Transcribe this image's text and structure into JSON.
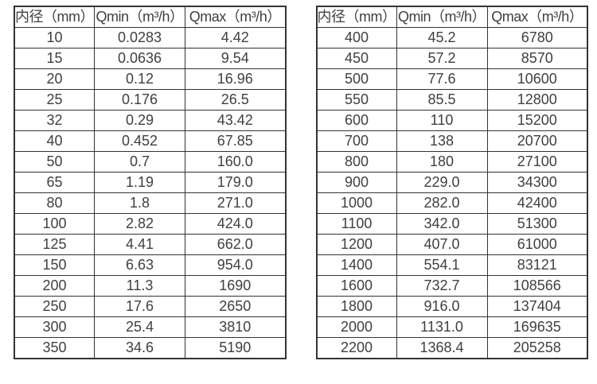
{
  "page": {
    "background_color": "#ffffff",
    "border_color": "#333333",
    "text_color": "#404040"
  },
  "tables": [
    {
      "name": "flow-rate-table-small-diameters",
      "headers": [
        "内径（mm）",
        "Qmin（m³/h）",
        "Qmax（m³/h）"
      ],
      "rows": [
        [
          "10",
          "0.0283",
          "4.42"
        ],
        [
          "15",
          "0.0636",
          "9.54"
        ],
        [
          "20",
          "0.12",
          "16.96"
        ],
        [
          "25",
          "0.176",
          "26.5"
        ],
        [
          "32",
          "0.29",
          "43.42"
        ],
        [
          "40",
          "0.452",
          "67.85"
        ],
        [
          "50",
          "0.7",
          "160.0"
        ],
        [
          "65",
          "1.19",
          "179.0"
        ],
        [
          "80",
          "1.8",
          "271.0"
        ],
        [
          "100",
          "2.82",
          "424.0"
        ],
        [
          "125",
          "4.41",
          "662.0"
        ],
        [
          "150",
          "6.63",
          "954.0"
        ],
        [
          "200",
          "11.3",
          "1690"
        ],
        [
          "250",
          "17.6",
          "2650"
        ],
        [
          "300",
          "25.4",
          "3810"
        ],
        [
          "350",
          "34.6",
          "5190"
        ]
      ]
    },
    {
      "name": "flow-rate-table-large-diameters",
      "headers": [
        "内径（mm）",
        "Qmin（m³/h）",
        "Qmax（m³/h）"
      ],
      "rows": [
        [
          "400",
          "45.2",
          "6780"
        ],
        [
          "450",
          "57.2",
          "8570"
        ],
        [
          "500",
          "77.6",
          "10600"
        ],
        [
          "550",
          "85.5",
          "12800"
        ],
        [
          "600",
          "110",
          "15200"
        ],
        [
          "700",
          "138",
          "20700"
        ],
        [
          "800",
          "180",
          "27100"
        ],
        [
          "900",
          "229.0",
          "34300"
        ],
        [
          "1000",
          "282.0",
          "42400"
        ],
        [
          "1100",
          "342.0",
          "51300"
        ],
        [
          "1200",
          "407.0",
          "61000"
        ],
        [
          "1400",
          "554.1",
          "83121"
        ],
        [
          "1600",
          "732.7",
          "108566"
        ],
        [
          "1800",
          "916.0",
          "137404"
        ],
        [
          "2000",
          "1131.0",
          "169635"
        ],
        [
          "2200",
          "1368.4",
          "205258"
        ]
      ]
    }
  ]
}
